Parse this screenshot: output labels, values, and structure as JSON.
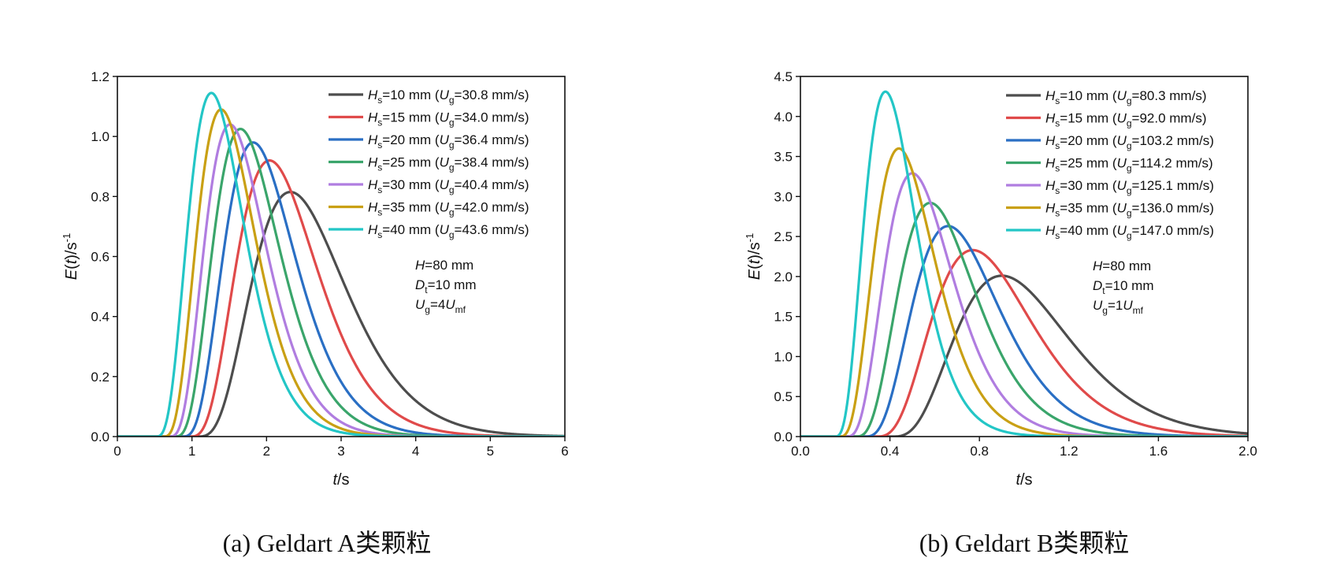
{
  "chart_data": [
    {
      "type": "line",
      "caption": "(a) Geldart A类颗粒",
      "xlabel": {
        "var": "t",
        "unit": "/s"
      },
      "ylabel": {
        "var": "E",
        "arg": "t",
        "unit": "/s",
        "exp": "-1"
      },
      "xlim": [
        0,
        6
      ],
      "ylim": [
        0,
        1.2
      ],
      "xticks": [
        "0",
        "1",
        "2",
        "3",
        "4",
        "5",
        "6"
      ],
      "yticks": [
        "0.0",
        "0.2",
        "0.4",
        "0.6",
        "0.8",
        "1.0",
        "1.2"
      ],
      "annotation": [
        {
          "main": "H",
          "sub": "",
          "rest": "=80 mm"
        },
        {
          "main": "D",
          "sub": "t",
          "rest": "=10 mm"
        },
        {
          "main": "U",
          "sub": "g",
          "rest": "=4",
          "main2": "U",
          "sub2": "mf"
        }
      ],
      "series": [
        {
          "name": "Hs=10 mm (Ug=30.8 mm/s)",
          "hs": "=10 mm (",
          "ug": "=30.8 mm/s)",
          "color": "#4d4d4d",
          "t0": 1.05,
          "peak_x": 2.32,
          "peak_y": 0.815,
          "shape": 4.0
        },
        {
          "name": "Hs=15 mm (Ug=34.0 mm/s)",
          "hs": "=15 mm (",
          "ug": "=34.0 mm/s)",
          "color": "#e04a4a",
          "t0": 0.95,
          "peak_x": 2.04,
          "peak_y": 0.92,
          "shape": 4.0
        },
        {
          "name": "Hs=20 mm (Ug=36.4 mm/s)",
          "hs": "=20 mm (",
          "ug": "=36.4 mm/s)",
          "color": "#2a6fc4",
          "t0": 0.85,
          "peak_x": 1.82,
          "peak_y": 0.98,
          "shape": 4.0
        },
        {
          "name": "Hs=25 mm (Ug=38.4 mm/s)",
          "hs": "=25 mm (",
          "ug": "=38.4 mm/s)",
          "color": "#3aa56b",
          "t0": 0.75,
          "peak_x": 1.65,
          "peak_y": 1.025,
          "shape": 4.0
        },
        {
          "name": "Hs=30 mm (Ug=40.4 mm/s)",
          "hs": "=30 mm (",
          "ug": "=40.4 mm/s)",
          "color": "#b07de0",
          "t0": 0.68,
          "peak_x": 1.51,
          "peak_y": 1.04,
          "shape": 4.0
        },
        {
          "name": "Hs=35 mm (Ug=42.0 mm/s)",
          "hs": "=35 mm (",
          "ug": "=42.0 mm/s)",
          "color": "#c9a014",
          "t0": 0.6,
          "peak_x": 1.39,
          "peak_y": 1.09,
          "shape": 4.0
        },
        {
          "name": "Hs=40 mm (Ug=43.6 mm/s)",
          "hs": "=40 mm (",
          "ug": "=43.6 mm/s)",
          "color": "#23c6c6",
          "t0": 0.5,
          "peak_x": 1.26,
          "peak_y": 1.145,
          "shape": 4.0
        }
      ]
    },
    {
      "type": "line",
      "caption": "(b) Geldart B类颗粒",
      "xlabel": {
        "var": "t",
        "unit": "/s"
      },
      "ylabel": {
        "var": "E",
        "arg": "t",
        "unit": "/s",
        "exp": "-1"
      },
      "xlim": [
        0,
        2.0
      ],
      "ylim": [
        0,
        4.5
      ],
      "xticks": [
        "0.0",
        "0.4",
        "0.8",
        "1.2",
        "1.6",
        "2.0"
      ],
      "yticks": [
        "0.0",
        "0.5",
        "1.0",
        "1.5",
        "2.0",
        "2.5",
        "3.0",
        "3.5",
        "4.0",
        "4.5"
      ],
      "annotation": [
        {
          "main": "H",
          "sub": "",
          "rest": "=80 mm"
        },
        {
          "main": "D",
          "sub": "t",
          "rest": "=10 mm"
        },
        {
          "main": "U",
          "sub": "g",
          "rest": "=1",
          "main2": "U",
          "sub2": "mf"
        }
      ],
      "series": [
        {
          "name": "Hs=10 mm (Ug=80.3 mm/s)",
          "hs": "=10 mm (",
          "ug": "=80.3 mm/s)",
          "color": "#4d4d4d",
          "t0": 0.4,
          "peak_x": 0.9,
          "peak_y": 2.01,
          "shape": 3.8
        },
        {
          "name": "Hs=15 mm (Ug=92.0 mm/s)",
          "hs": "=15 mm (",
          "ug": "=92.0 mm/s)",
          "color": "#e04a4a",
          "t0": 0.33,
          "peak_x": 0.77,
          "peak_y": 2.33,
          "shape": 3.8
        },
        {
          "name": "Hs=20 mm (Ug=103.2 mm/s)",
          "hs": "=20 mm (",
          "ug": "=103.2 mm/s)",
          "color": "#2a6fc4",
          "t0": 0.28,
          "peak_x": 0.66,
          "peak_y": 2.63,
          "shape": 3.8
        },
        {
          "name": "Hs=25 mm (Ug=114.2 mm/s)",
          "hs": "=25 mm (",
          "ug": "=114.2 mm/s)",
          "color": "#3aa56b",
          "t0": 0.24,
          "peak_x": 0.58,
          "peak_y": 2.92,
          "shape": 3.8
        },
        {
          "name": "Hs=30 mm (Ug=125.1 mm/s)",
          "hs": "=30 mm (",
          "ug": "=125.1 mm/s)",
          "color": "#b07de0",
          "t0": 0.2,
          "peak_x": 0.5,
          "peak_y": 3.29,
          "shape": 3.8
        },
        {
          "name": "Hs=35 mm (Ug=136.0 mm/s)",
          "hs": "=35 mm (",
          "ug": "=136.0 mm/s)",
          "color": "#c9a014",
          "t0": 0.17,
          "peak_x": 0.44,
          "peak_y": 3.6,
          "shape": 3.8
        },
        {
          "name": "Hs=40 mm (Ug=147.0 mm/s)",
          "hs": "=40 mm (",
          "ug": "=147.0 mm/s)",
          "color": "#23c6c6",
          "t0": 0.15,
          "peak_x": 0.38,
          "peak_y": 4.31,
          "shape": 3.8
        }
      ]
    }
  ]
}
